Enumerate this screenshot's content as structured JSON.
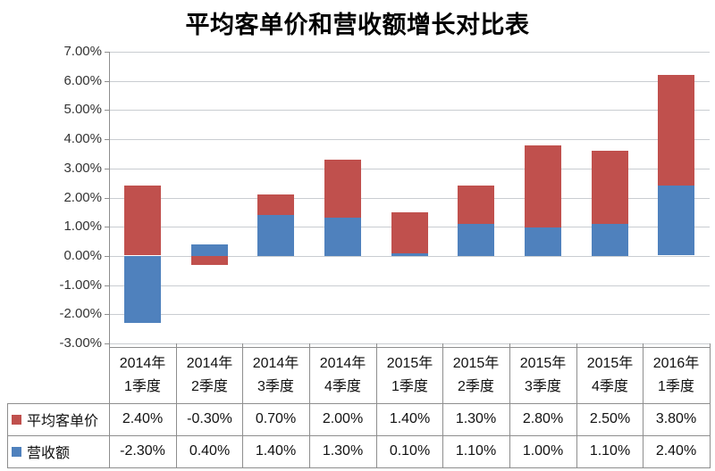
{
  "chart_data": {
    "type": "bar",
    "stacked": true,
    "title": "平均客单价和营收额增长对比表",
    "categories": [
      "2014年1季度",
      "2014年2季度",
      "2014年3季度",
      "2014年4季度",
      "2015年1季度",
      "2015年2季度",
      "2015年3季度",
      "2015年4季度",
      "2016年1季度"
    ],
    "series": [
      {
        "name": "平均客单价",
        "color": "#C0504D",
        "values": [
          2.4,
          -0.3,
          0.7,
          2.0,
          1.4,
          1.3,
          2.8,
          2.5,
          3.8
        ],
        "display": [
          "2.40%",
          "-0.30%",
          "0.70%",
          "2.00%",
          "1.40%",
          "1.30%",
          "2.80%",
          "2.50%",
          "3.80%"
        ]
      },
      {
        "name": "营收额",
        "color": "#4F81BD",
        "values": [
          -2.3,
          0.4,
          1.4,
          1.3,
          0.1,
          1.1,
          1.0,
          1.1,
          2.4
        ],
        "display": [
          "-2.30%",
          "0.40%",
          "1.40%",
          "1.30%",
          "0.10%",
          "1.10%",
          "1.00%",
          "1.10%",
          "2.40%"
        ]
      }
    ],
    "stack_order": [
      "营收额",
      "平均客单价"
    ],
    "ylim": [
      -3,
      7
    ],
    "ytick_step": 1,
    "ytick_labels": [
      "7.00%",
      "6.00%",
      "5.00%",
      "4.00%",
      "3.00%",
      "2.00%",
      "1.00%",
      "0.00%",
      "-1.00%",
      "-2.00%",
      "-3.00%"
    ],
    "grid": true,
    "legend_position": "data-table-left",
    "styles": {
      "red": "#C0504D",
      "blue": "#4F81BD",
      "gridline_color": "#C9CDD1",
      "axis_color": "#8E8E8E",
      "table_border_color": "#8E8E8E",
      "title_color": "#000000",
      "axis_label_color": "#333333",
      "table_text_color": "#111111",
      "background": "#FFFFFF"
    }
  }
}
